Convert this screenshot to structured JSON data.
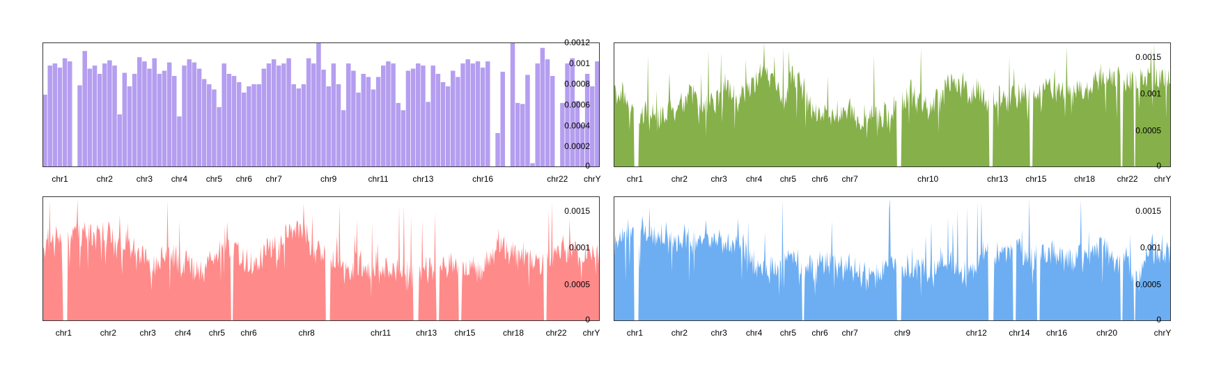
{
  "colors": {
    "purple": "#b59ef0",
    "green": "#86b04a",
    "red": "#ff8a8a",
    "blue": "#6daef2"
  },
  "chart_data": [
    {
      "type": "bar",
      "color": "#b59ef0",
      "ylim": [
        0,
        0.0012
      ],
      "yticks": [
        "0.0012",
        "0.001",
        "0.0008",
        "0.0006",
        "0.0004",
        "0.0002",
        "0"
      ],
      "ytick_values": [
        0.0012,
        0.001,
        0.0008,
        0.0006,
        0.0004,
        0.0002,
        0
      ],
      "xlabels": [
        "chr1",
        "chr2",
        "chr3",
        "chr4",
        "chr5",
        "chr6",
        "chr7",
        "chr9",
        "chr11",
        "chr13",
        "chr16",
        "chr22",
        "chrY"
      ],
      "xlabel_bins": [
        3,
        12,
        20,
        27,
        34,
        40,
        46,
        57,
        67,
        76,
        88,
        103,
        110
      ],
      "nbins": 112,
      "values": [
        0.0007,
        0.00098,
        0.001,
        0.00096,
        0.00105,
        0.00102,
        0,
        0.00079,
        0.00112,
        0.00095,
        0.00098,
        0.0009,
        0.001,
        0.00103,
        0.00098,
        0.00051,
        0.00091,
        0.00078,
        0.0009,
        0.00106,
        0.00102,
        0.00095,
        0.00105,
        0.0009,
        0.00093,
        0.00101,
        0.00088,
        0.00049,
        0.00098,
        0.00104,
        0.00101,
        0.00095,
        0.00085,
        0.0008,
        0.00075,
        0.00058,
        0.001,
        0.0009,
        0.00088,
        0.00082,
        0.00072,
        0.00078,
        0.0008,
        0.0008,
        0.00095,
        0.001,
        0.00104,
        0.00098,
        0.001,
        0.00105,
        0.0008,
        0.00076,
        0.0008,
        0.00105,
        0.001,
        0.00122,
        0.00094,
        0.00078,
        0.001,
        0.0008,
        0.00055,
        0.001,
        0.00093,
        0.00072,
        0.0009,
        0.00087,
        0.00075,
        0.00087,
        0.00098,
        0.00102,
        0.001,
        0.00062,
        0.00055,
        0.00093,
        0.00095,
        0.001,
        0.00098,
        0.00063,
        0.00098,
        0.0009,
        0.00082,
        0.00078,
        0.00093,
        0.00087,
        0.001,
        0.00104,
        0.001,
        0.00102,
        0.00096,
        0.00102,
        0,
        0.00033,
        0.00092,
        0,
        0.00122,
        0.00062,
        0.00061,
        0.00089,
        4e-05,
        0.001,
        0.00115,
        0.00104,
        0.00088,
        0,
        0.00062,
        0.001,
        0.00105,
        0.00064,
        0.00041,
        0.0009,
        0.00078,
        0.00102
      ]
    },
    {
      "type": "area",
      "color": "#86b04a",
      "ylim": [
        0,
        0.0017
      ],
      "yticks": [
        "0.0015",
        "0.001",
        "0.0005",
        "0"
      ],
      "ytick_values": [
        0.0015,
        0.001,
        0.0005,
        0
      ],
      "xlabels": [
        "chr1",
        "chr2",
        "chr3",
        "chr4",
        "chr5",
        "chr6",
        "chr7",
        "chr10",
        "chr13",
        "chr15",
        "chr18",
        "chr22",
        "chrY"
      ],
      "xlabel_pos": [
        0.038,
        0.118,
        0.189,
        0.252,
        0.313,
        0.37,
        0.424,
        0.564,
        0.689,
        0.758,
        0.845,
        0.922,
        0.985
      ],
      "gaps": [
        [
          0.037,
          0.045
        ],
        [
          0.508,
          0.516
        ],
        [
          0.673,
          0.681
        ],
        [
          0.746,
          0.752
        ],
        [
          0.909,
          0.913
        ],
        [
          0.933,
          0.936
        ]
      ],
      "base_level": 0.00095,
      "peak_level": 0.0017
    },
    {
      "type": "area",
      "color": "#ff8a8a",
      "ylim": [
        0,
        0.0017
      ],
      "yticks": [
        "0.0015",
        "0.001",
        "0.0005",
        "0"
      ],
      "ytick_values": [
        0.0015,
        0.001,
        0.0005,
        0
      ],
      "xlabels": [
        "chr1",
        "chr2",
        "chr3",
        "chr4",
        "chr5",
        "chr6",
        "chr8",
        "chr11",
        "chr13",
        "chr15",
        "chr18",
        "chr22",
        "chrY"
      ],
      "xlabel_pos": [
        0.038,
        0.118,
        0.189,
        0.252,
        0.313,
        0.37,
        0.474,
        0.607,
        0.689,
        0.758,
        0.845,
        0.922,
        0.985
      ],
      "gaps": [
        [
          0.037,
          0.045
        ],
        [
          0.338,
          0.342
        ],
        [
          0.508,
          0.516
        ],
        [
          0.665,
          0.675
        ],
        [
          0.707,
          0.712
        ],
        [
          0.746,
          0.752
        ],
        [
          0.9,
          0.905
        ]
      ],
      "base_level": 0.00095,
      "peak_level": 0.00168
    },
    {
      "type": "area",
      "color": "#6daef2",
      "ylim": [
        0,
        0.0017
      ],
      "yticks": [
        "0.0015",
        "0.001",
        "0.0005",
        "0"
      ],
      "ytick_values": [
        0.0015,
        0.001,
        0.0005,
        0
      ],
      "xlabels": [
        "chr1",
        "chr2",
        "chr3",
        "chr4",
        "chr5",
        "chr6",
        "chr7",
        "chr9",
        "chr12",
        "chr14",
        "chr16",
        "chr20",
        "chrY"
      ],
      "xlabel_pos": [
        0.038,
        0.118,
        0.189,
        0.252,
        0.313,
        0.37,
        0.424,
        0.518,
        0.651,
        0.728,
        0.795,
        0.885,
        0.985
      ],
      "gaps": [
        [
          0.037,
          0.045
        ],
        [
          0.338,
          0.342
        ],
        [
          0.508,
          0.516
        ],
        [
          0.672,
          0.682
        ],
        [
          0.716,
          0.722
        ],
        [
          0.76,
          0.765
        ],
        [
          0.909,
          0.913
        ],
        [
          0.933,
          0.936
        ]
      ],
      "base_level": 0.00095,
      "peak_level": 0.00168
    }
  ]
}
